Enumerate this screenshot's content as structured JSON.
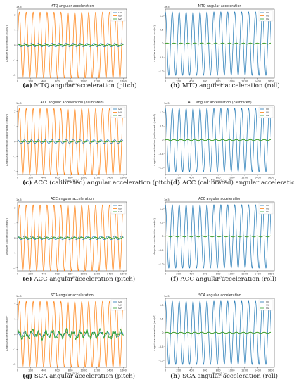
{
  "colors": {
    "x": "#1f77b4",
    "y": "#ff7f0e",
    "z": "#2ca02c"
  },
  "chart_data": [
    {
      "id": "a",
      "type": "line",
      "mode": "pitch",
      "title": "MTQ angular acceleration",
      "xlabel": "Time (0.1s)",
      "ylabel": "Angular acceleration (rad/s²)",
      "exponent": "1e-5",
      "xlim": [
        0,
        1650
      ],
      "ylim": [
        -2.2,
        2.4
      ],
      "xticks": [
        "0",
        "200",
        "400",
        "600",
        "800",
        "1000",
        "1200",
        "1400",
        "1600"
      ],
      "yticks": [
        "-2",
        "-1",
        "0",
        "1",
        "2"
      ],
      "ytick_values": [
        -2,
        -1,
        0,
        1,
        2
      ],
      "legend": [
        "ωx",
        "ωy",
        "ωz"
      ],
      "legend_pos": "top-right",
      "series": [
        {
          "name": "ωx",
          "shape": "sine",
          "amplitude": 0.12,
          "period_samples": 105,
          "range": [
            0,
            1600
          ]
        },
        {
          "name": "ωy",
          "shape": "sine",
          "amplitude": 2.2,
          "period_samples": 105,
          "range": [
            0,
            1600
          ]
        },
        {
          "name": "ωz",
          "shape": "sine",
          "amplitude": 0.03,
          "period_samples": 105,
          "range": [
            0,
            1600
          ]
        }
      ],
      "caption_label": "(a)",
      "caption_text": "MTQ angular acceleration (pitch)"
    },
    {
      "id": "b",
      "type": "line",
      "mode": "roll",
      "title": "MTQ angular acceleration",
      "xlabel": "Time (0.1s)",
      "ylabel": "Angular acceleration (rad/s²)",
      "exponent": "1e-5",
      "xlim": [
        0,
        1650
      ],
      "ylim": [
        -1.25,
        1.25
      ],
      "xticks": [
        "0",
        "200",
        "400",
        "600",
        "800",
        "1000",
        "1200",
        "1400",
        "1600"
      ],
      "yticks": [
        "-1.0",
        "-0.5",
        "0",
        "0.5",
        "1.0"
      ],
      "ytick_values": [
        -1,
        -0.5,
        0,
        0.5,
        1
      ],
      "legend": [
        "ωx",
        "ωy",
        "ωz"
      ],
      "legend_pos": "top-right",
      "series": [
        {
          "name": "ωx",
          "shape": "sine",
          "amplitude": 1.15,
          "period_samples": 105,
          "range": [
            0,
            1600
          ]
        },
        {
          "name": "ωy",
          "shape": "sine",
          "amplitude": 0.02,
          "period_samples": 105,
          "range": [
            0,
            1600
          ]
        },
        {
          "name": "ωz",
          "shape": "sine",
          "amplitude": 0.02,
          "period_samples": 105,
          "range": [
            0,
            1600
          ]
        }
      ],
      "caption_label": "(b)",
      "caption_text": "MTQ angular acceleration (roll)"
    },
    {
      "id": "c",
      "type": "line",
      "mode": "pitch",
      "title": "ACC angular acceleration (calibrated)",
      "xlabel": "Time (0.1s)",
      "ylabel": "Angular acceleration (calibrated) (rad/s²)",
      "exponent": "1e-5",
      "xlim": [
        0,
        1650
      ],
      "ylim": [
        -2.2,
        2.4
      ],
      "xticks": [
        "0",
        "200",
        "400",
        "600",
        "800",
        "1000",
        "1200",
        "1400",
        "1600"
      ],
      "yticks": [
        "-2",
        "-1",
        "0",
        "1",
        "2"
      ],
      "ytick_values": [
        -2,
        -1,
        0,
        1,
        2
      ],
      "legend": [
        "ωx",
        "ωy",
        "ωz"
      ],
      "legend_pos": "top-right",
      "series": [
        {
          "name": "ωx",
          "shape": "sine",
          "amplitude": 0.12,
          "period_samples": 105,
          "range": [
            0,
            1600
          ]
        },
        {
          "name": "ωy",
          "shape": "sine",
          "amplitude": 2.2,
          "period_samples": 105,
          "range": [
            0,
            1600
          ]
        },
        {
          "name": "ωz",
          "shape": "sine",
          "amplitude": 0.03,
          "period_samples": 105,
          "range": [
            0,
            1600
          ]
        }
      ],
      "caption_label": "(c)",
      "caption_text": "ACC (calibrated) angular acceleration (pitch)"
    },
    {
      "id": "d",
      "type": "line",
      "mode": "roll",
      "title": "ACC angular acceleration (calibrated)",
      "xlabel": "Time (0.1s)",
      "ylabel": "Angular acceleration (calibrated) (rad/s²)",
      "exponent": "1e-5",
      "xlim": [
        0,
        1650
      ],
      "ylim": [
        -1.25,
        1.25
      ],
      "xticks": [
        "0",
        "200",
        "400",
        "600",
        "800",
        "1000",
        "1200",
        "1400",
        "1600"
      ],
      "yticks": [
        "-1.0",
        "-0.5",
        "0",
        "0.5",
        "1.0"
      ],
      "ytick_values": [
        -1,
        -0.5,
        0,
        0.5,
        1
      ],
      "legend": [
        "ωx",
        "ωy",
        "ωz"
      ],
      "legend_pos": "top-right",
      "series": [
        {
          "name": "ωx",
          "shape": "sine",
          "amplitude": 1.15,
          "period_samples": 105,
          "range": [
            0,
            1600
          ]
        },
        {
          "name": "ωy",
          "shape": "sine",
          "amplitude": 0.02,
          "period_samples": 105,
          "range": [
            0,
            1600
          ]
        },
        {
          "name": "ωz",
          "shape": "sine",
          "amplitude": 0.02,
          "period_samples": 105,
          "range": [
            0,
            1600
          ]
        }
      ],
      "caption_label": "(d)",
      "caption_text": "ACC (calibrated) angular acceleration (roll)"
    },
    {
      "id": "e",
      "type": "line",
      "mode": "pitch",
      "title": "ACC angular acceleration",
      "xlabel": "Time (0.1s)",
      "ylabel": "Angular acceleration (rad/s²)",
      "exponent": "1e-5",
      "xlim": [
        0,
        1650
      ],
      "ylim": [
        -2.2,
        2.4
      ],
      "xticks": [
        "0",
        "200",
        "400",
        "600",
        "800",
        "1000",
        "1200",
        "1400",
        "1600"
      ],
      "yticks": [
        "-2",
        "-1",
        "0",
        "1",
        "2"
      ],
      "ytick_values": [
        -2,
        -1,
        0,
        1,
        2
      ],
      "legend": [
        "ωx",
        "ωy",
        "ωz"
      ],
      "legend_pos": "top-right",
      "series": [
        {
          "name": "ωx",
          "shape": "sine",
          "amplitude": 0.12,
          "period_samples": 105,
          "range": [
            0,
            1600
          ]
        },
        {
          "name": "ωy",
          "shape": "sine",
          "amplitude": 2.2,
          "period_samples": 105,
          "range": [
            0,
            1600
          ]
        },
        {
          "name": "ωz",
          "shape": "sine",
          "amplitude": 0.05,
          "period_samples": 105,
          "range": [
            0,
            1600
          ]
        }
      ],
      "caption_label": "(e)",
      "caption_text": "ACC angular acceleration (pitch)"
    },
    {
      "id": "f",
      "type": "line",
      "mode": "roll",
      "title": "ACC angular acceleration",
      "xlabel": "Time (0.1s)",
      "ylabel": "Angular acceleration (rad/s²)",
      "exponent": "1e-5",
      "xlim": [
        0,
        1650
      ],
      "ylim": [
        -1.25,
        1.25
      ],
      "xticks": [
        "0",
        "200",
        "400",
        "600",
        "800",
        "1000",
        "1200",
        "1400",
        "1600"
      ],
      "yticks": [
        "-1.0",
        "-0.5",
        "0",
        "0.5",
        "1.0"
      ],
      "ytick_values": [
        -1,
        -0.5,
        0,
        0.5,
        1
      ],
      "legend": [
        "ωx",
        "ωy",
        "ωz"
      ],
      "legend_pos": "top-right",
      "series": [
        {
          "name": "ωx",
          "shape": "sine",
          "amplitude": 1.15,
          "period_samples": 105,
          "range": [
            0,
            1600
          ]
        },
        {
          "name": "ωy",
          "shape": "sine",
          "amplitude": 0.02,
          "period_samples": 105,
          "range": [
            0,
            1600
          ]
        },
        {
          "name": "ωz",
          "shape": "sine",
          "amplitude": 0.02,
          "period_samples": 105,
          "range": [
            0,
            1600
          ]
        }
      ],
      "caption_label": "(f)",
      "caption_text": "ACC angular acceleration (roll)"
    },
    {
      "id": "g",
      "type": "line",
      "mode": "pitch",
      "title": "SCA angular acceleration",
      "xlabel": "Time (0.1s)",
      "ylabel": "Angular acceleration (rad/s²)",
      "exponent": "1e-5",
      "xlim": [
        0,
        1650
      ],
      "ylim": [
        -2.2,
        2.4
      ],
      "xticks": [
        "0",
        "200",
        "400",
        "600",
        "800",
        "1000",
        "1200",
        "1400",
        "1600"
      ],
      "yticks": [
        "-2",
        "-1",
        "0",
        "1",
        "2"
      ],
      "ytick_values": [
        -2,
        -1,
        0,
        1,
        2
      ],
      "legend": [
        "ωx",
        "ωy",
        "ωz"
      ],
      "legend_pos": "top-right",
      "series": [
        {
          "name": "ωx",
          "shape": "sine",
          "amplitude": 0.15,
          "period_samples": 105,
          "range": [
            0,
            1600
          ]
        },
        {
          "name": "ωy",
          "shape": "sine",
          "amplitude": 2.2,
          "period_samples": 105,
          "range": [
            0,
            1600
          ]
        },
        {
          "name": "ωz",
          "shape": "noisy",
          "amplitude": 0.35,
          "period_samples": 105,
          "range": [
            0,
            1600
          ]
        }
      ],
      "caption_label": "(g)",
      "caption_text": "SCA angular acceleration (pitch)"
    },
    {
      "id": "h",
      "type": "line",
      "mode": "roll",
      "title": "SCA angular acceleration",
      "xlabel": "Time (0.1s)",
      "ylabel": "Angular acceleration (rad/s²)",
      "exponent": "1e-5",
      "xlim": [
        0,
        1650
      ],
      "ylim": [
        -1.25,
        1.25
      ],
      "xticks": [
        "0",
        "200",
        "400",
        "600",
        "800",
        "1000",
        "1200",
        "1400",
        "1600"
      ],
      "yticks": [
        "-1.0",
        "-0.5",
        "0",
        "0.5",
        "1.0"
      ],
      "ytick_values": [
        -1,
        -0.5,
        0,
        0.5,
        1
      ],
      "legend": [
        "ωx",
        "ωy",
        "ωz"
      ],
      "legend_pos": "top-right",
      "series": [
        {
          "name": "ωx",
          "shape": "sine",
          "amplitude": 1.15,
          "period_samples": 105,
          "range": [
            0,
            1600
          ]
        },
        {
          "name": "ωy",
          "shape": "sine",
          "amplitude": 0.02,
          "period_samples": 105,
          "range": [
            0,
            1600
          ]
        },
        {
          "name": "ωz",
          "shape": "sine",
          "amplitude": 0.02,
          "period_samples": 105,
          "range": [
            0,
            1600
          ]
        }
      ],
      "caption_label": "(h)",
      "caption_text": "SCA angular acceleration (roll)"
    }
  ]
}
